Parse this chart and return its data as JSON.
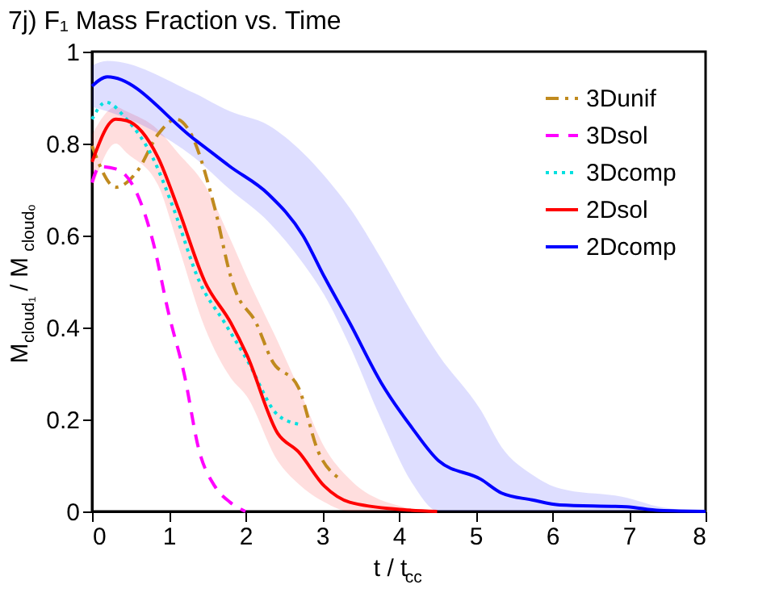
{
  "chart_data": {
    "type": "line",
    "title": "7j) F₁ Mass Fraction vs. Time",
    "xlabel": "t / t$_{cc}$",
    "ylabel": "M$_{cloud₁}$ / M$_{cloudₒ}$",
    "xlim": [
      0,
      8
    ],
    "ylim": [
      0,
      1
    ],
    "xticks": [
      0,
      1,
      2,
      3,
      4,
      5,
      6,
      7,
      8
    ],
    "yticks": [
      0,
      0.2,
      0.4,
      0.6,
      0.8,
      1
    ],
    "grid": false,
    "legend": "top right",
    "series": [
      {
        "name": "3Dunif",
        "color": "#c08a1e",
        "line_style": "dashdot",
        "x": [
          0,
          0.31,
          0.59,
          0.86,
          1.1,
          1.26,
          1.6,
          1.81,
          1.87,
          2.14,
          2.34,
          2.69,
          2.95,
          3.24
        ],
        "values": [
          0.795,
          0.705,
          0.74,
          0.82,
          0.853,
          0.83,
          0.66,
          0.51,
          0.48,
          0.41,
          0.33,
          0.27,
          0.13,
          0.07
        ]
      },
      {
        "name": "3Dsol",
        "color": "#ff00ff",
        "line_style": "dashed",
        "x": [
          0,
          0.1,
          0.31,
          0.59,
          0.79,
          1.0,
          1.2,
          1.4,
          1.6,
          1.8,
          2.0
        ],
        "values": [
          0.715,
          0.75,
          0.745,
          0.69,
          0.59,
          0.43,
          0.3,
          0.13,
          0.055,
          0.02,
          0
        ]
      },
      {
        "name": "3Dcomp",
        "color": "#00e0e0",
        "line_style": "dotted",
        "x": [
          0,
          0.18,
          0.45,
          0.79,
          1.06,
          1.4,
          1.73,
          2.02,
          2.42,
          2.69
        ],
        "values": [
          0.853,
          0.89,
          0.853,
          0.77,
          0.66,
          0.5,
          0.41,
          0.33,
          0.21,
          0.19
        ]
      },
      {
        "name": "2Dsol",
        "color": "#ff0000",
        "line_style": "solid",
        "x": [
          0,
          0.31,
          0.45,
          0.86,
          1.12,
          1.47,
          1.81,
          2.02,
          2.42,
          2.69,
          3.03,
          3.36,
          4.05,
          4.5
        ],
        "values": [
          0.76,
          0.853,
          0.85,
          0.77,
          0.66,
          0.5,
          0.41,
          0.34,
          0.17,
          0.13,
          0.055,
          0.02,
          0.004,
          0
        ],
        "lower": [
          0.7,
          0.8,
          0.78,
          0.71,
          0.58,
          0.4,
          0.29,
          0.25,
          0.11,
          0.06,
          0.02,
          0,
          0,
          0
        ],
        "upper": [
          0.82,
          0.88,
          0.87,
          0.83,
          0.78,
          0.71,
          0.59,
          0.51,
          0.37,
          0.27,
          0.14,
          0.07,
          0.01,
          0
        ]
      },
      {
        "name": "2Dcomp",
        "color": "#0000ff",
        "line_style": "solid",
        "x": [
          0,
          0.2,
          1.33,
          1.8,
          2.3,
          2.75,
          3.03,
          3.36,
          3.77,
          4.18,
          4.52,
          5.07,
          5.34,
          5.74,
          6.1,
          6.97,
          7.4,
          8
        ],
        "values": [
          0.925,
          0.945,
          0.81,
          0.75,
          0.69,
          0.6,
          0.51,
          0.41,
          0.28,
          0.18,
          0.11,
          0.07,
          0.04,
          0.025,
          0.014,
          0.01,
          0.002,
          0
        ],
        "lower": [
          0.88,
          0.87,
          0.77,
          0.7,
          0.63,
          0.54,
          0.47,
          0.36,
          0.2,
          0.06,
          0,
          0,
          0,
          0,
          0,
          0,
          0,
          0
        ],
        "upper": [
          0.97,
          0.98,
          0.91,
          0.87,
          0.84,
          0.78,
          0.73,
          0.66,
          0.55,
          0.43,
          0.34,
          0.22,
          0.14,
          0.08,
          0.05,
          0.03,
          0.01,
          0
        ]
      }
    ]
  }
}
